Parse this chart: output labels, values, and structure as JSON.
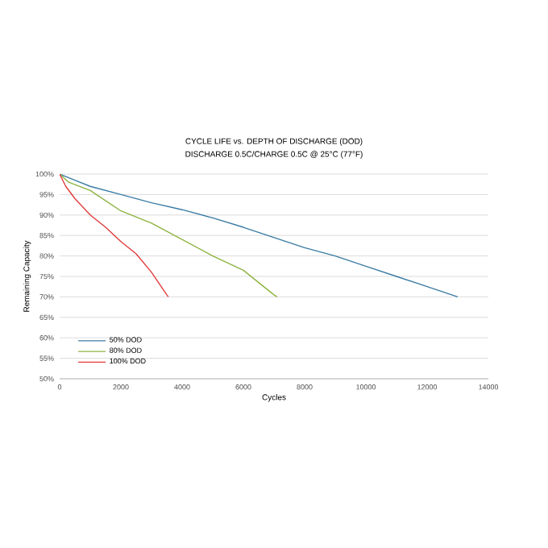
{
  "chart_data": {
    "type": "line",
    "title": "CYCLE LIFE vs. DEPTH OF DISCHARGE (DOD)",
    "subtitle": "DISCHARGE 0.5C/CHARGE 0.5C @ 25°C (77°F)",
    "xlabel": "Cycles",
    "ylabel": "Remaining Capacity",
    "xlim": [
      0,
      14000
    ],
    "xticks": [
      0,
      2000,
      4000,
      6000,
      8000,
      10000,
      12000,
      14000
    ],
    "ylim": [
      50,
      100
    ],
    "yticks": [
      {
        "value": 50,
        "label": "50%"
      },
      {
        "value": 55,
        "label": "55%"
      },
      {
        "value": 60,
        "label": "60%"
      },
      {
        "value": 65,
        "label": "65%"
      },
      {
        "value": 70,
        "label": "70%"
      },
      {
        "value": 75,
        "label": "75%"
      },
      {
        "value": 80,
        "label": "80%"
      },
      {
        "value": 85,
        "label": "85%"
      },
      {
        "value": 90,
        "label": "90%"
      },
      {
        "value": 95,
        "label": "95%"
      },
      {
        "value": 100,
        "label": "100%"
      }
    ],
    "grid": "y",
    "legend": "bottom left",
    "marker": "none",
    "line_style": "solid",
    "series": [
      {
        "name": "50% DOD",
        "color": "#3a7ca5",
        "x": [
          0,
          500,
          1000,
          2000,
          3000,
          4000,
          5000,
          6000,
          7000,
          8000,
          9000,
          10000,
          11000,
          12000,
          13000
        ],
        "values": [
          100,
          98.5,
          97,
          95,
          93,
          91.3,
          89.3,
          87,
          84.5,
          82,
          80,
          77.5,
          75,
          72.5,
          70
        ]
      },
      {
        "name": "80% DOD",
        "color": "#8db33f",
        "x": [
          0,
          300,
          1000,
          2000,
          3000,
          4000,
          5000,
          6000,
          7000,
          7100
        ],
        "values": [
          100,
          98,
          96,
          91,
          88,
          84,
          80,
          76.5,
          70.5,
          70
        ]
      },
      {
        "name": "100% DOD",
        "color": "#e03c3c",
        "x": [
          0,
          200,
          500,
          1000,
          1500,
          2000,
          2500,
          3000,
          3500,
          3550
        ],
        "values": [
          100,
          97,
          94,
          90,
          87,
          83.5,
          80.5,
          76,
          70.5,
          70
        ]
      }
    ]
  }
}
